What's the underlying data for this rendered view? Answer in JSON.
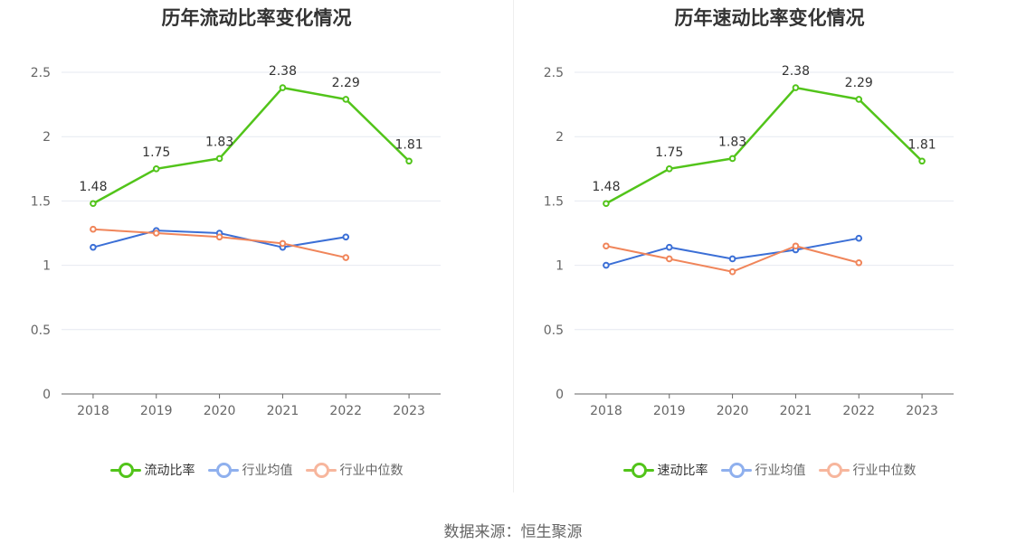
{
  "chart_data": [
    {
      "type": "line",
      "title": "历年流动比率变化情况",
      "categories": [
        "2018",
        "2019",
        "2020",
        "2021",
        "2022",
        "2023"
      ],
      "ylim": [
        0,
        2.5
      ],
      "yticks": [
        "0",
        "0.5",
        "1",
        "1.5",
        "2",
        "2.5"
      ],
      "grid": true,
      "legend_position": "bottom",
      "series": [
        {
          "name": "流动比率",
          "color": "#52c41a",
          "values": [
            1.48,
            1.75,
            1.83,
            2.38,
            2.29,
            1.81
          ],
          "labels": [
            "1.48",
            "1.75",
            "1.83",
            "2.38",
            "2.29",
            "1.81"
          ]
        },
        {
          "name": "行业均值",
          "color": "#3b6fd6",
          "values": [
            1.14,
            1.27,
            1.25,
            1.14,
            1.22,
            null
          ]
        },
        {
          "name": "行业中位数",
          "color": "#f0855a",
          "values": [
            1.28,
            1.25,
            1.22,
            1.17,
            1.06,
            null
          ]
        }
      ]
    },
    {
      "type": "line",
      "title": "历年速动比率变化情况",
      "categories": [
        "2018",
        "2019",
        "2020",
        "2021",
        "2022",
        "2023"
      ],
      "ylim": [
        0,
        2.5
      ],
      "yticks": [
        "0",
        "0.5",
        "1",
        "1.5",
        "2",
        "2.5"
      ],
      "grid": true,
      "legend_position": "bottom",
      "series": [
        {
          "name": "速动比率",
          "color": "#52c41a",
          "values": [
            1.48,
            1.75,
            1.83,
            2.38,
            2.29,
            1.81
          ],
          "labels": [
            "1.48",
            "1.75",
            "1.83",
            "2.38",
            "2.29",
            "1.81"
          ]
        },
        {
          "name": "行业均值",
          "color": "#3b6fd6",
          "values": [
            1.0,
            1.14,
            1.05,
            1.12,
            1.21,
            null
          ]
        },
        {
          "name": "行业中位数",
          "color": "#f0855a",
          "values": [
            1.15,
            1.05,
            0.95,
            1.15,
            1.02,
            null
          ]
        }
      ]
    }
  ],
  "legend_colors": {
    "main": "#52c41a",
    "avg": "#8fb0ee",
    "median": "#f7b69d"
  },
  "source": "数据来源：恒生聚源"
}
